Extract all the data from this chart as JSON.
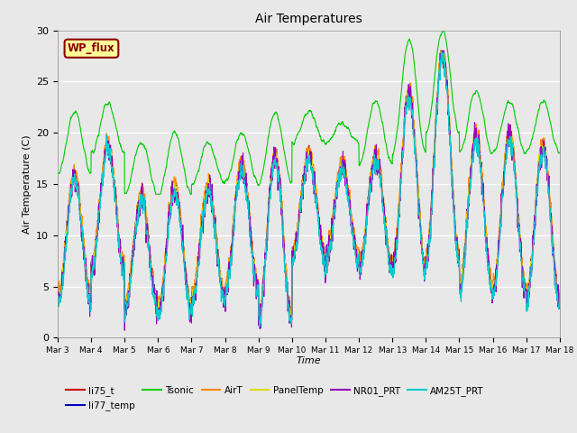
{
  "title": "Air Temperatures",
  "xlabel": "Time",
  "ylabel": "Air Temperature (C)",
  "ylim": [
    0,
    30
  ],
  "background_color": "#e8e8e8",
  "plot_bg_color": "#e8e8e8",
  "legend_label": "WP_flux",
  "series_colors": {
    "li75_t": "#cc0000",
    "li77_temp": "#0000bb",
    "Tsonic": "#00cc00",
    "AirT": "#ff8800",
    "PanelTemp": "#dddd00",
    "NR01_PRT": "#9900bb",
    "AM25T_PRT": "#00cccc"
  },
  "xtick_labels": [
    "Mar 3",
    "Mar 4",
    "Mar 5",
    "Mar 6",
    "Mar 7",
    "Mar 8",
    "Mar 9",
    "Mar 10",
    "Mar 11",
    "Mar 12",
    "Mar 13",
    "Mar 14",
    "Mar 15",
    "Mar 16",
    "Mar 17",
    "Mar 18"
  ],
  "xtick_positions": [
    3,
    4,
    5,
    6,
    7,
    8,
    9,
    10,
    11,
    12,
    13,
    14,
    15,
    16,
    17,
    18
  ],
  "ytick_positions": [
    0,
    5,
    10,
    15,
    20,
    25,
    30
  ]
}
